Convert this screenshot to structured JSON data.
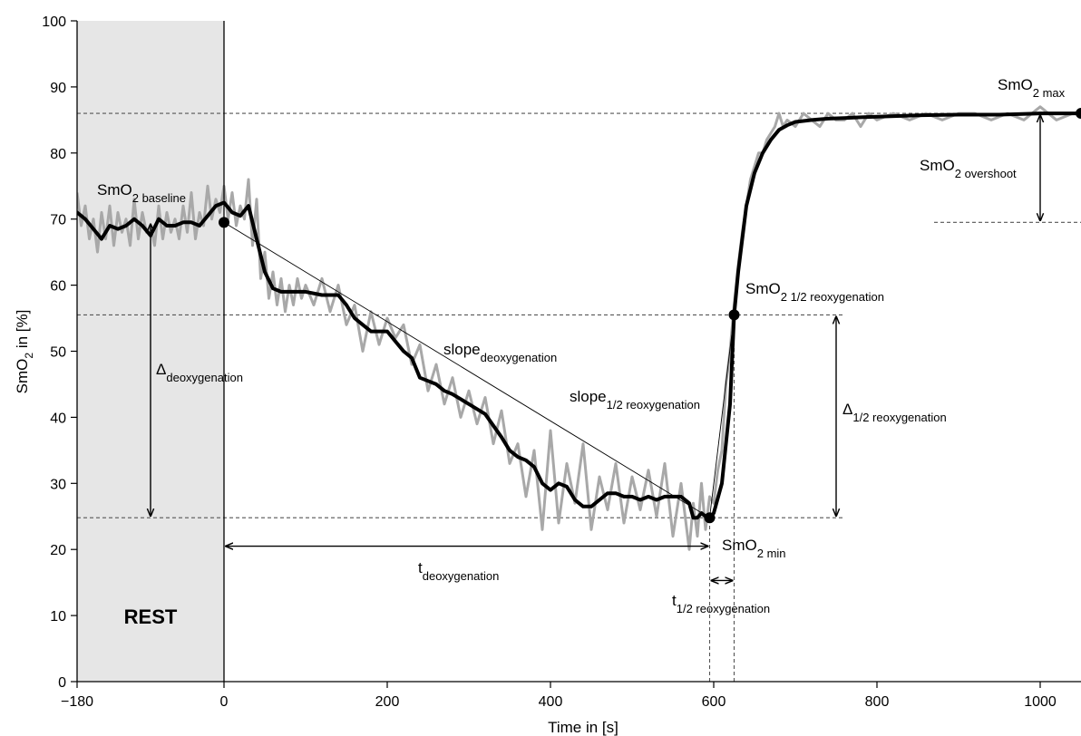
{
  "chart_data": {
    "type": "line",
    "xlabel": "Time in [s]",
    "ylabel_main": "SmO",
    "ylabel_sub": "2",
    "ylabel_tail": " in [%]",
    "xlim": [
      -180,
      1050
    ],
    "ylim": [
      0,
      100
    ],
    "x_ticks": [
      -180,
      0,
      200,
      400,
      600,
      800,
      1000
    ],
    "x_tick_labels": [
      "−180",
      "0",
      "200",
      "400",
      "600",
      "800",
      "1000"
    ],
    "y_ticks": [
      0,
      10,
      20,
      30,
      40,
      50,
      60,
      70,
      80,
      90,
      100
    ],
    "y_tick_labels": [
      "0",
      "10",
      "20",
      "30",
      "40",
      "50",
      "60",
      "70",
      "80",
      "90",
      "100"
    ],
    "rest_region": {
      "x": [
        -180,
        0
      ],
      "label": "REST",
      "color": "#e6e6e6",
      "label_color": "#999999"
    },
    "raw_color": "#a8a8a8",
    "smooth_color": "#000000",
    "smoothed_series": {
      "x": [
        -180,
        -170,
        -160,
        -150,
        -140,
        -130,
        -120,
        -110,
        -100,
        -90,
        -80,
        -70,
        -60,
        -50,
        -40,
        -30,
        -20,
        -10,
        0,
        10,
        20,
        30,
        40,
        50,
        60,
        70,
        80,
        90,
        100,
        120,
        140,
        150,
        160,
        170,
        180,
        190,
        200,
        210,
        220,
        230,
        240,
        250,
        260,
        270,
        280,
        300,
        320,
        340,
        350,
        360,
        370,
        380,
        390,
        400,
        410,
        420,
        430,
        440,
        450,
        460,
        470,
        480,
        490,
        500,
        510,
        520,
        530,
        540,
        550,
        560,
        570,
        575,
        580,
        585,
        590,
        595,
        600,
        610,
        620,
        625,
        630,
        640,
        650,
        660,
        670,
        680,
        690,
        700,
        720,
        740,
        760,
        780,
        800,
        850,
        900,
        950,
        1000,
        1050
      ],
      "y": [
        71,
        70,
        68.5,
        67,
        69,
        68.5,
        69,
        70,
        69,
        67.5,
        70,
        69,
        69,
        69.5,
        69.5,
        69,
        70.5,
        72,
        72.5,
        71,
        70.5,
        72,
        67,
        62,
        59.5,
        59,
        59,
        59,
        59,
        58.5,
        58.5,
        57,
        55,
        54,
        53,
        53,
        53,
        51.5,
        50,
        49,
        46,
        45.5,
        45,
        44,
        43.5,
        42,
        40.5,
        37,
        35,
        34,
        33.5,
        32.5,
        30,
        29,
        30,
        29.5,
        27.5,
        26.5,
        26.5,
        27.5,
        28.5,
        28.5,
        28,
        28,
        27.5,
        28,
        27.5,
        28,
        28,
        28,
        27,
        24.8,
        24.8,
        25.5,
        25,
        24.8,
        25.5,
        30,
        42,
        55.5,
        62,
        72,
        77,
        80,
        82,
        83.5,
        84.2,
        84.7,
        85,
        85.2,
        85.3,
        85.4,
        85.5,
        85.7,
        85.8,
        85.8,
        86,
        86
      ]
    },
    "raw_series": {
      "x": [
        -180,
        -175,
        -170,
        -165,
        -160,
        -155,
        -150,
        -145,
        -140,
        -135,
        -130,
        -125,
        -120,
        -115,
        -110,
        -105,
        -100,
        -95,
        -90,
        -85,
        -80,
        -75,
        -70,
        -65,
        -60,
        -55,
        -50,
        -45,
        -40,
        -35,
        -30,
        -25,
        -20,
        -15,
        -10,
        -5,
        0,
        5,
        10,
        15,
        20,
        25,
        30,
        35,
        40,
        45,
        50,
        55,
        60,
        65,
        70,
        75,
        80,
        85,
        90,
        95,
        100,
        110,
        120,
        130,
        140,
        150,
        160,
        170,
        180,
        190,
        200,
        210,
        220,
        230,
        240,
        250,
        260,
        270,
        280,
        290,
        300,
        310,
        320,
        330,
        340,
        350,
        360,
        370,
        380,
        390,
        400,
        410,
        420,
        430,
        440,
        450,
        460,
        470,
        480,
        490,
        500,
        510,
        520,
        530,
        540,
        550,
        560,
        570,
        575,
        580,
        585,
        590,
        595,
        600,
        605,
        610,
        615,
        620,
        625,
        630,
        635,
        640,
        645,
        650,
        655,
        660,
        665,
        670,
        675,
        680,
        685,
        690,
        700,
        710,
        720,
        730,
        740,
        750,
        760,
        770,
        780,
        790,
        800,
        820,
        840,
        860,
        880,
        900,
        920,
        940,
        960,
        980,
        1000,
        1020,
        1040,
        1050
      ],
      "y": [
        74,
        69,
        72,
        67,
        70,
        65,
        71,
        67,
        72,
        66,
        71,
        68,
        70,
        66,
        73,
        67,
        71,
        68,
        69,
        66,
        72,
        67,
        71,
        68,
        70,
        67,
        72,
        68,
        74,
        67,
        71,
        69,
        75,
        70,
        73,
        71,
        75,
        70,
        74,
        69,
        72,
        70,
        76,
        66,
        73,
        61,
        65,
        58,
        62,
        57,
        61,
        56,
        60,
        57,
        61,
        58,
        60,
        57,
        61,
        56,
        60,
        54,
        57,
        50,
        56,
        51,
        55,
        52,
        54,
        48,
        51,
        44,
        48,
        42,
        46,
        40,
        44,
        39,
        43,
        36,
        41,
        33,
        36,
        28,
        35,
        23,
        38,
        24,
        33,
        27,
        36,
        23,
        31,
        26,
        33,
        24,
        31,
        26,
        32,
        25,
        33,
        22,
        30,
        20,
        27,
        22,
        30,
        23,
        28,
        27,
        32,
        35,
        45,
        50,
        57,
        63,
        68,
        72,
        76,
        78,
        80,
        80,
        82,
        83,
        84,
        86,
        84,
        85,
        84,
        86,
        85,
        84,
        86,
        85,
        85,
        86,
        84,
        86,
        85,
        86,
        85,
        86,
        85,
        86,
        86,
        85,
        86,
        85,
        87,
        85,
        86,
        86
      ]
    },
    "markers": [
      {
        "name": "SmO2 baseline point",
        "x": 0,
        "y": 69.5
      },
      {
        "name": "SmO2 min point",
        "x": 595,
        "y": 24.8
      },
      {
        "name": "SmO2 1/2 reoxygenation point",
        "x": 625,
        "y": 55.5
      },
      {
        "name": "SmO2 max point",
        "x": 1050,
        "y": 86
      }
    ],
    "slope_lines": [
      {
        "name": "slope deoxygenation",
        "x": [
          0,
          595
        ],
        "y": [
          69.5,
          24.8
        ]
      },
      {
        "name": "slope 1/2 reoxygenation",
        "x": [
          595,
          625
        ],
        "y": [
          24.8,
          55.5
        ]
      }
    ],
    "guide_lines": {
      "horizontal": [
        {
          "y": 86,
          "x": [
            -180,
            1050
          ]
        },
        {
          "y": 69.5,
          "x": [
            870,
            1050
          ]
        },
        {
          "y": 55.5,
          "x": [
            -180,
            760
          ]
        },
        {
          "y": 24.8,
          "x": [
            -180,
            760
          ]
        }
      ],
      "vertical": [
        {
          "x": 595,
          "y": [
            0,
            25
          ]
        },
        {
          "x": 625,
          "y": [
            0,
            55.5
          ]
        }
      ]
    },
    "annotations": {
      "baseline": {
        "main": "SmO",
        "sub": "2 baseline"
      },
      "max": {
        "main": "SmO",
        "sub": "2 max"
      },
      "overshoot": {
        "main": "SmO",
        "sub": "2 overshoot"
      },
      "half_reoxygenation": {
        "main": "SmO",
        "sub": "2 1/2 reoxygenation"
      },
      "min": {
        "main": "SmO",
        "sub": "2 min"
      },
      "slope_deoxygenation": {
        "main": "slope",
        "sub": "deoxygenation"
      },
      "slope_half_reoxygenation": {
        "main": "slope",
        "sub": "1/2 reoxygenation"
      },
      "delta_deoxygenation": {
        "main": "Δ",
        "sub": "deoxygenation"
      },
      "delta_half_reoxygenation": {
        "main": "Δ",
        "sub": "1/2 reoxygenation"
      },
      "t_deoxygenation": {
        "main": "t",
        "sub": "deoxygenation"
      },
      "t_half_reoxygenation": {
        "main": "t",
        "sub": "1/2 reoxygenation"
      }
    }
  }
}
